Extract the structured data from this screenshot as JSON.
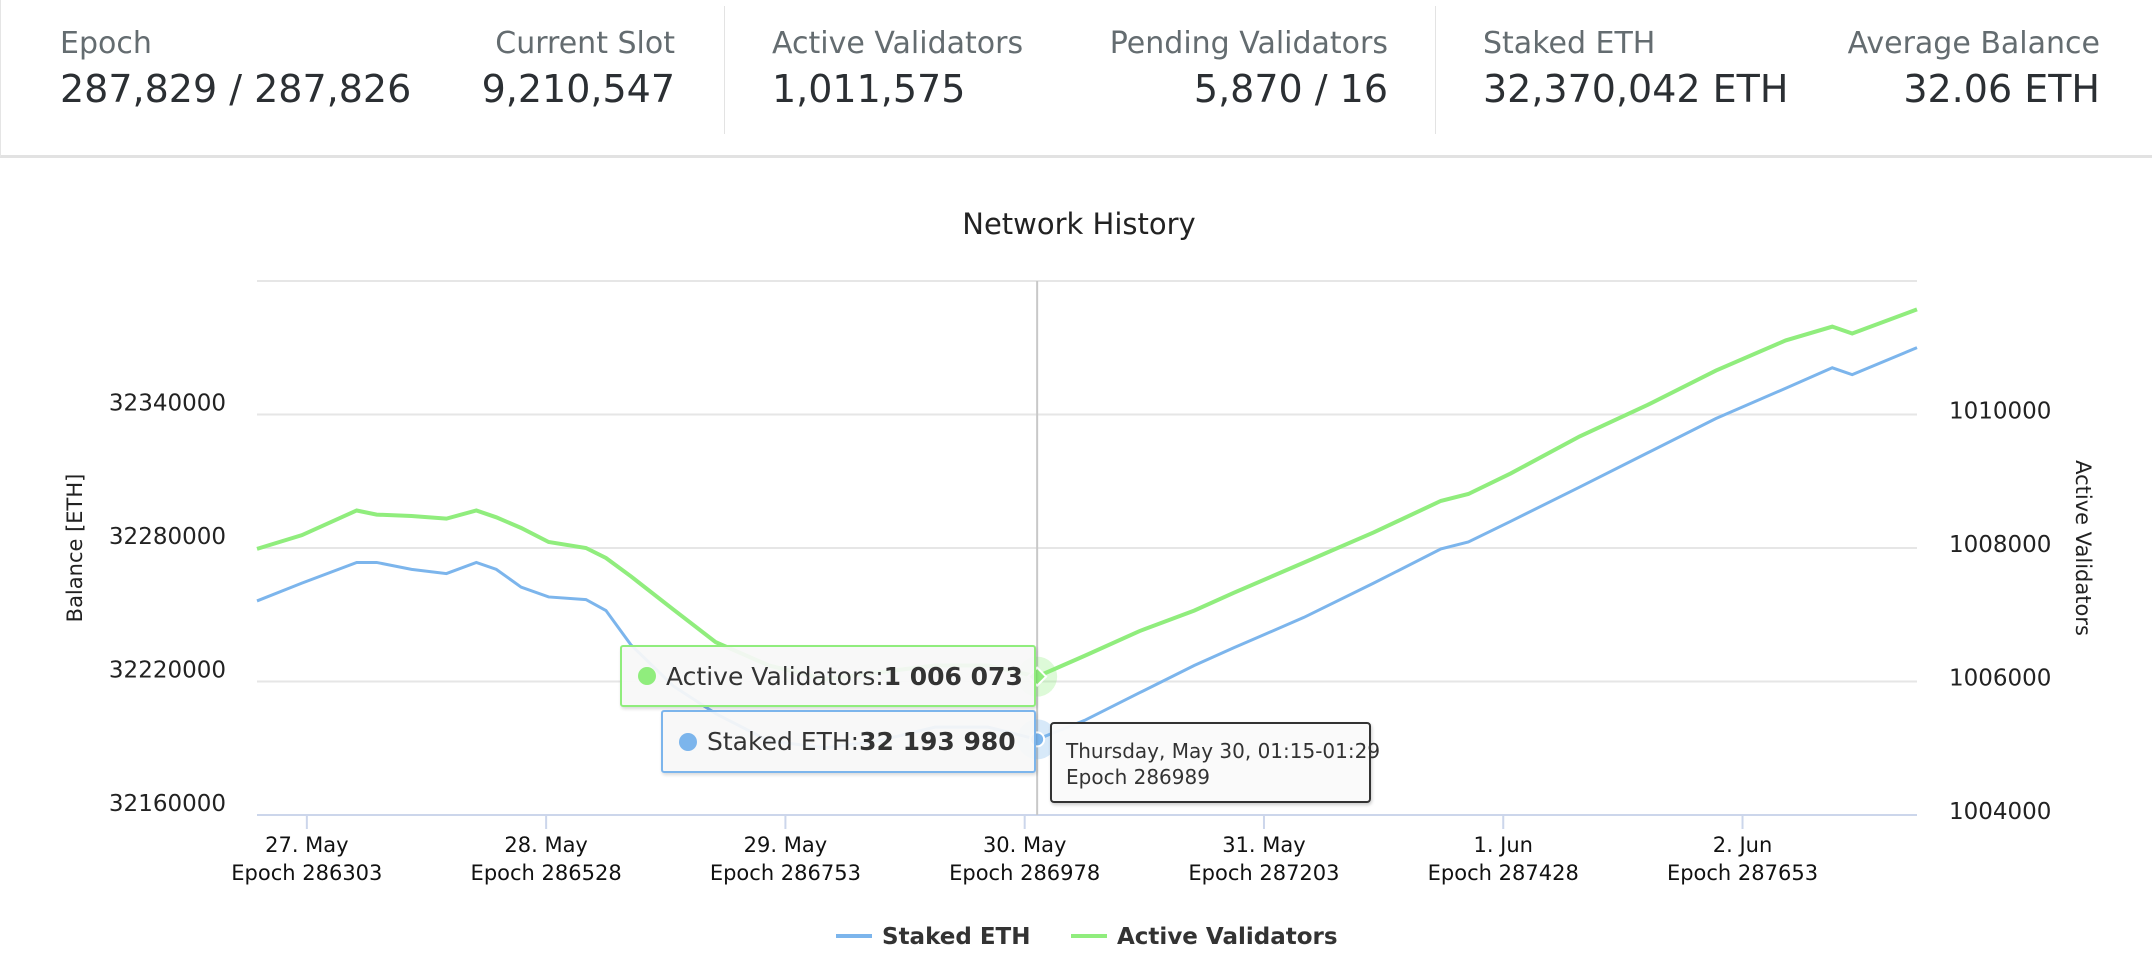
{
  "header": {
    "stats": [
      {
        "label": "Epoch",
        "value": "287,829 / 287,826"
      },
      {
        "label": "Current Slot",
        "value": "9,210,547"
      },
      {
        "label": "Active Validators",
        "value": "1,011,575"
      },
      {
        "label": "Pending Validators",
        "value": "5,870 / 16"
      },
      {
        "label": "Staked ETH",
        "value": "32,370,042 ETH"
      },
      {
        "label": "Average Balance",
        "value": "32.06 ETH"
      }
    ]
  },
  "chart_data": {
    "type": "line",
    "title": "Network History",
    "ylabel_left": "Balance [ETH]",
    "ylabel_right": "Active Validators",
    "ylim_left": [
      32160000,
      32400000
    ],
    "yticks_left": [
      "32160000",
      "32220000",
      "32280000",
      "32340000"
    ],
    "ylim_right": [
      1004000,
      1012000
    ],
    "yticks_right": [
      "1004000",
      "1006000",
      "1008000",
      "1010000"
    ],
    "xlim": [
      "2024-05-26T19:00",
      "2024-06-02T17:30"
    ],
    "xticks": [
      {
        "date": "2024-05-27",
        "label": "27. May",
        "epoch": "Epoch 286303"
      },
      {
        "date": "2024-05-28",
        "label": "28. May",
        "epoch": "Epoch 286528"
      },
      {
        "date": "2024-05-29",
        "label": "29. May",
        "epoch": "Epoch 286753"
      },
      {
        "date": "2024-05-30",
        "label": "30. May",
        "epoch": "Epoch 286978"
      },
      {
        "date": "2024-05-31",
        "label": "31. May",
        "epoch": "Epoch 287203"
      },
      {
        "date": "2024-06-01",
        "label": "1. Jun",
        "epoch": "Epoch 287428"
      },
      {
        "date": "2024-06-02",
        "label": "2. Jun",
        "epoch": "Epoch 287653"
      }
    ],
    "grid": true,
    "legend_position": "bottom-center",
    "series": [
      {
        "name": "Staked ETH",
        "axis": "left",
        "color": "#7cb5ec"
      },
      {
        "name": "Active Validators",
        "axis": "right",
        "color": "#90ed7d"
      }
    ],
    "points": [
      [
        "2024-05-26T19:00",
        32256200,
        1007987
      ],
      [
        "2024-05-26T23:30",
        32264200,
        1008192
      ],
      [
        "2024-05-27T05:00",
        32273500,
        1008562
      ],
      [
        "2024-05-27T07:00",
        32273500,
        1008500
      ],
      [
        "2024-05-27T10:30",
        32270400,
        1008480
      ],
      [
        "2024-05-27T14:00",
        32268500,
        1008440
      ],
      [
        "2024-05-27T17:00",
        32273500,
        1008562
      ],
      [
        "2024-05-27T19:00",
        32270400,
        1008460
      ],
      [
        "2024-05-27T21:30",
        32262400,
        1008300
      ],
      [
        "2024-05-28T00:15",
        32258000,
        1008090
      ],
      [
        "2024-05-28T04:00",
        32256800,
        1008000
      ],
      [
        "2024-05-28T06:00",
        32251900,
        1007850
      ],
      [
        "2024-05-28T08:30",
        32236500,
        1007576
      ],
      [
        "2024-05-28T12:45",
        32218000,
        1007080
      ],
      [
        "2024-05-28T17:00",
        32205600,
        1006590
      ],
      [
        "2024-05-28T22:20",
        32193300,
        1006240
      ],
      [
        "2024-05-29T04:00",
        32190200,
        1006035
      ],
      [
        "2024-05-29T09:20",
        32193300,
        1006137
      ],
      [
        "2024-05-29T15:00",
        32199500,
        1006240
      ],
      [
        "2024-05-29T20:20",
        32199500,
        1006240
      ],
      [
        "2024-05-30T01:15",
        32193980,
        1006073
      ],
      [
        "2024-05-30T06:00",
        32202500,
        1006384
      ],
      [
        "2024-05-30T11:30",
        32214900,
        1006754
      ],
      [
        "2024-05-30T17:00",
        32227200,
        1007062
      ],
      [
        "2024-05-30T21:00",
        32235200,
        1007330
      ],
      [
        "2024-05-31T04:00",
        32248800,
        1007781
      ],
      [
        "2024-05-31T11:00",
        32264200,
        1008233
      ],
      [
        "2024-05-31T17:45",
        32279600,
        1008706
      ],
      [
        "2024-05-31T20:30",
        32282700,
        1008809
      ],
      [
        "2024-06-01T00:45",
        32292000,
        1009117
      ],
      [
        "2024-06-01T07:40",
        32307400,
        1009672
      ],
      [
        "2024-06-01T14:30",
        32322800,
        1010145
      ],
      [
        "2024-06-01T21:20",
        32338200,
        1010658
      ],
      [
        "2024-06-02T04:20",
        32351800,
        1011110
      ],
      [
        "2024-06-02T09:00",
        32361000,
        1011316
      ],
      [
        "2024-06-02T11:00",
        32357900,
        1011213
      ],
      [
        "2024-06-02T17:30",
        32370042,
        1011575
      ]
    ],
    "hover": {
      "time": "2024-05-30T01:15",
      "date_text": "Thursday, May 30, 01:15-01:29",
      "epoch_text": "Epoch 286989",
      "active_label": "Active Validators: ",
      "active_value": "1 006 073",
      "staked_label": "Staked ETH: ",
      "staked_value": "32 193 980"
    }
  }
}
